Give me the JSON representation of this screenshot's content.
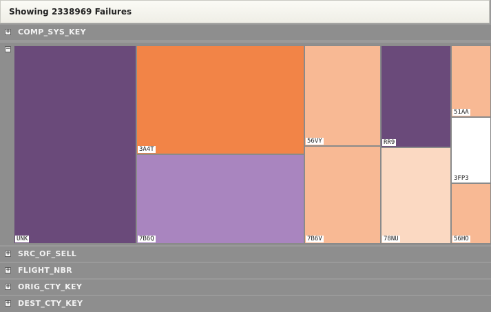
{
  "header": {
    "title": "Showing 2338969 Failures"
  },
  "groups": {
    "comp_sys_key": {
      "label": "COMP_SYS_KEY",
      "expander": "+"
    },
    "expanded": {
      "expander": "−"
    },
    "src_of_sell": {
      "label": "SRC_OF_SELL",
      "expander": "+"
    },
    "flight_nbr": {
      "label": "FLIGHT_NBR",
      "expander": "+"
    },
    "orig_cty_key": {
      "label": "ORIG_CTY_KEY",
      "expander": "+"
    },
    "dest_cty_key": {
      "label": "DEST_CTY_KEY",
      "expander": "+"
    }
  },
  "tiles": {
    "unk": {
      "label": "UNK",
      "color": "#6a4a7a"
    },
    "3a4t": {
      "label": "3A4T",
      "color": "#f28447"
    },
    "7b6q": {
      "label": "7B6Q",
      "color": "#a985bf"
    },
    "56vy": {
      "label": "56VY",
      "color": "#f8b994"
    },
    "7b6v": {
      "label": "7B6V",
      "color": "#f8b994"
    },
    "rr9": {
      "label": "RR9",
      "color": "#6a4a7a"
    },
    "78nu": {
      "label": "78NU",
      "color": "#fbd9c2"
    },
    "51aa": {
      "label": "51AA",
      "color": "#f8b994"
    },
    "3fp3": {
      "label": "3FP3",
      "color": "#ffffff"
    },
    "56ho": {
      "label": "56HO",
      "color": "#f8b994"
    }
  }
}
